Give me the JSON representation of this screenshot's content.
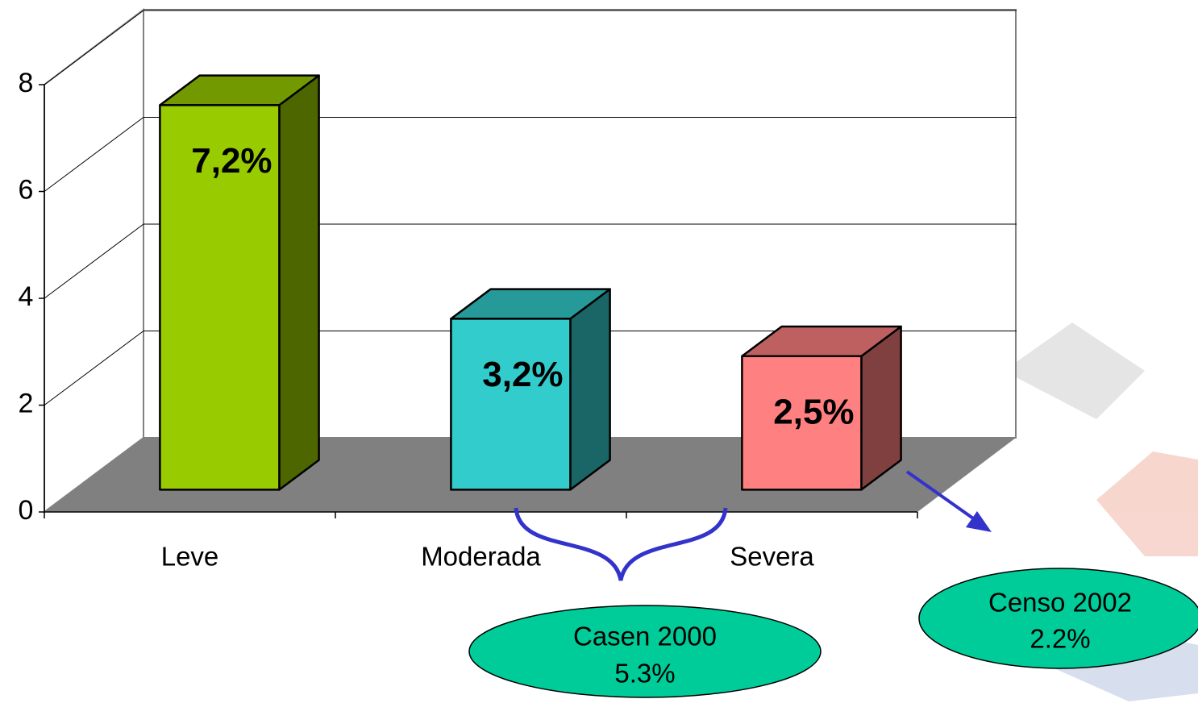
{
  "chart_data": {
    "type": "bar3d",
    "categories": [
      "Leve",
      "Moderada",
      "Severa"
    ],
    "values": [
      7.2,
      3.2,
      2.5
    ],
    "value_labels": [
      "7,2%",
      "3,2%",
      "2,5%"
    ],
    "colors": [
      "#99cc00",
      "#33cccc",
      "#ff8080"
    ],
    "ylim": [
      0,
      8
    ],
    "yticks": [
      0,
      2,
      4,
      6,
      8
    ],
    "grid": true,
    "annotations": [
      [
        "Casen 2000",
        "5.3%"
      ],
      [
        "Censo 2002",
        "2.2%"
      ]
    ]
  }
}
